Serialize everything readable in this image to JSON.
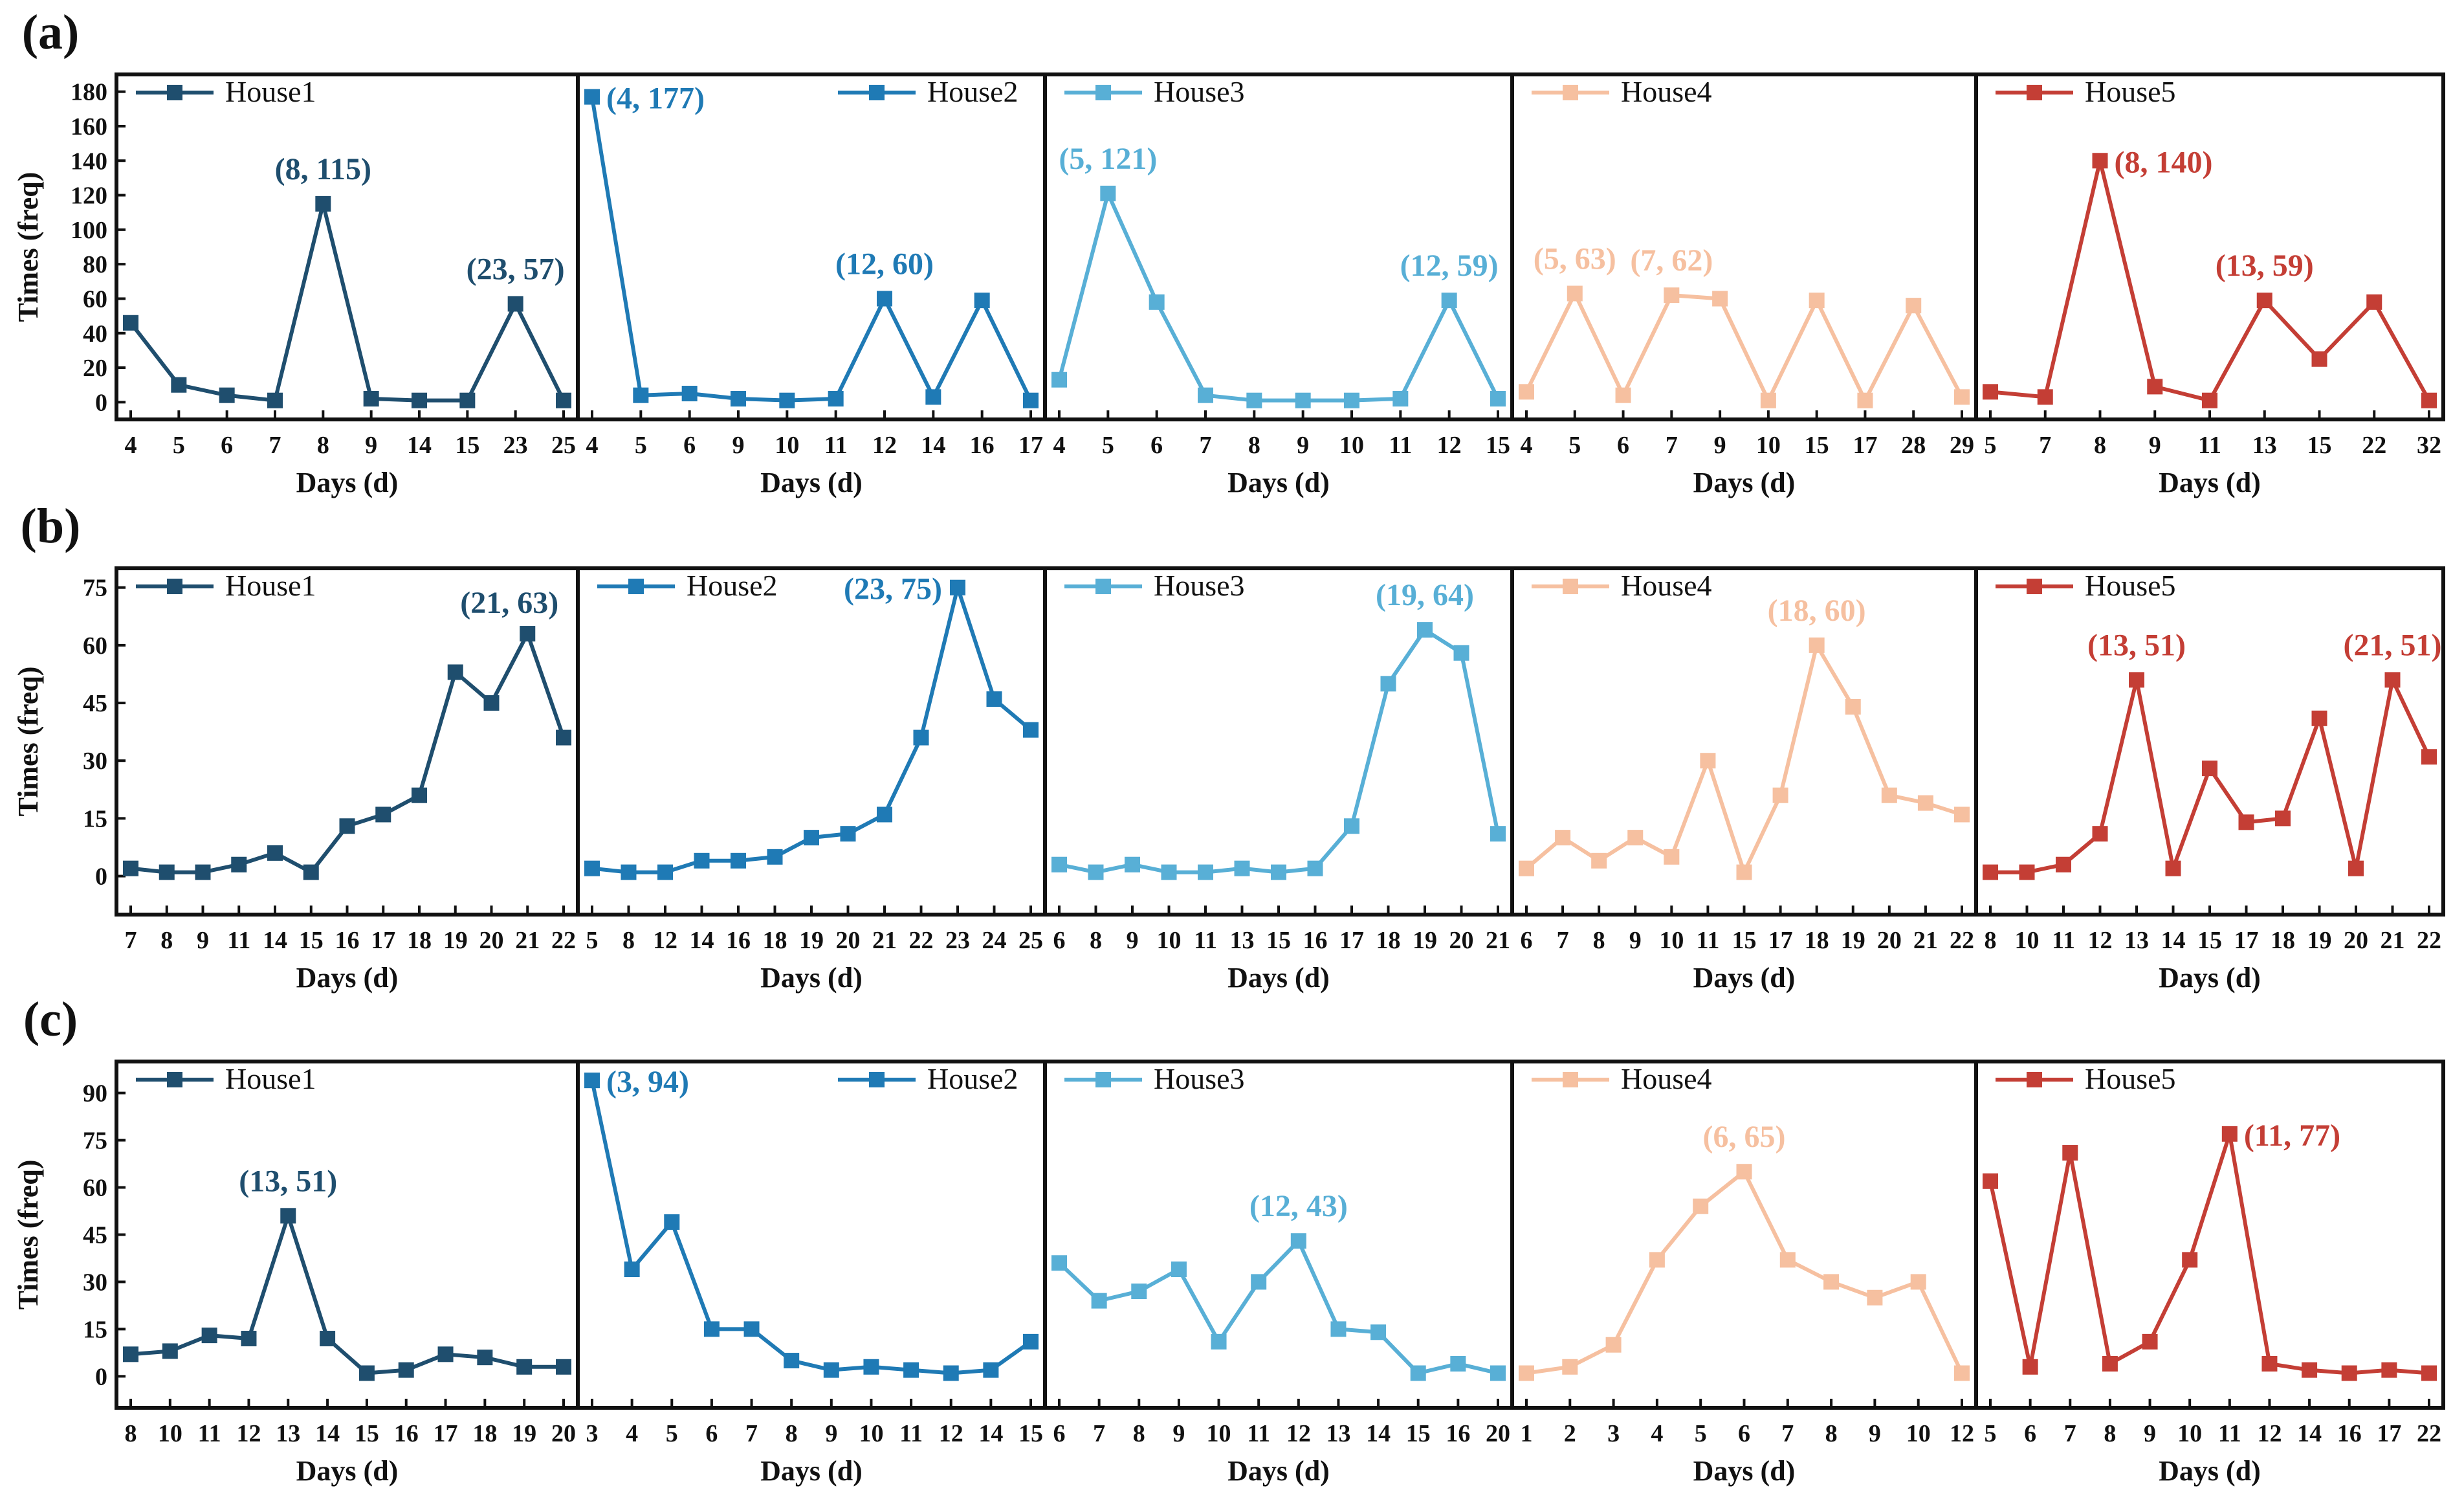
{
  "figure": {
    "x_axis_label": "Days (d)",
    "y_axis_label": "Times (freq)"
  },
  "chart_data": [
    {
      "id": "a",
      "label": "(a)",
      "type": "line",
      "ylim": [
        -10,
        190
      ],
      "yticks": [
        0,
        20,
        40,
        60,
        80,
        100,
        120,
        140,
        160,
        180
      ],
      "panels": [
        {
          "series": "House1",
          "color": "#1f4e6e",
          "legend": "left",
          "categories": [
            "4",
            "5",
            "6",
            "7",
            "8",
            "9",
            "14",
            "15",
            "23",
            "25"
          ],
          "values": [
            46,
            10,
            4,
            1,
            115,
            2,
            1,
            1,
            57,
            1
          ],
          "annotations": [
            {
              "index": 4,
              "text": "(8, 115)",
              "pos": "above"
            },
            {
              "index": 8,
              "text": "(23, 57)",
              "pos": "above"
            }
          ]
        },
        {
          "series": "House2",
          "color": "#1f7ab5",
          "legend": "right",
          "categories": [
            "4",
            "5",
            "6",
            "9",
            "10",
            "11",
            "12",
            "14",
            "16",
            "17"
          ],
          "values": [
            177,
            4,
            5,
            2,
            1,
            2,
            60,
            3,
            59,
            1
          ],
          "annotations": [
            {
              "index": 0,
              "text": "(4, 177)",
              "pos": "right"
            },
            {
              "index": 6,
              "text": "(12, 60)",
              "pos": "above"
            }
          ]
        },
        {
          "series": "House3",
          "color": "#58afd6",
          "legend": "left",
          "categories": [
            "4",
            "5",
            "6",
            "7",
            "8",
            "9",
            "10",
            "11",
            "12",
            "15"
          ],
          "values": [
            13,
            121,
            58,
            4,
            1,
            1,
            1,
            2,
            59,
            2
          ],
          "annotations": [
            {
              "index": 1,
              "text": "(5, 121)",
              "pos": "above"
            },
            {
              "index": 8,
              "text": "(12, 59)",
              "pos": "above"
            }
          ]
        },
        {
          "series": "House4",
          "color": "#f6c0a0",
          "legend": "left",
          "categories": [
            "4",
            "5",
            "6",
            "7",
            "9",
            "10",
            "15",
            "17",
            "28",
            "29"
          ],
          "values": [
            6,
            63,
            4,
            62,
            60,
            1,
            59,
            1,
            56,
            3
          ],
          "annotations": [
            {
              "index": 1,
              "text": "(5, 63)",
              "pos": "above"
            },
            {
              "index": 3,
              "text": "(7, 62)",
              "pos": "above"
            }
          ]
        },
        {
          "series": "House5",
          "color": "#c43e35",
          "legend": "left",
          "categories": [
            "5",
            "7",
            "8",
            "9",
            "11",
            "13",
            "15",
            "22",
            "32"
          ],
          "values": [
            6,
            3,
            140,
            9,
            1,
            59,
            25,
            58,
            1
          ],
          "annotations": [
            {
              "index": 2,
              "text": "(8, 140)",
              "pos": "right"
            },
            {
              "index": 5,
              "text": "(13, 59)",
              "pos": "above"
            }
          ]
        }
      ]
    },
    {
      "id": "b",
      "label": "(b)",
      "type": "line",
      "ylim": [
        -10,
        80
      ],
      "yticks": [
        0,
        15,
        30,
        45,
        60,
        75
      ],
      "panels": [
        {
          "series": "House1",
          "color": "#1f4e6e",
          "legend": "left",
          "categories": [
            "7",
            "8",
            "9",
            "11",
            "14",
            "15",
            "16",
            "17",
            "18",
            "19",
            "20",
            "21",
            "22"
          ],
          "values": [
            2,
            1,
            1,
            3,
            6,
            1,
            13,
            16,
            21,
            53,
            45,
            63,
            36
          ],
          "annotations": [
            {
              "index": 11,
              "text": "(21, 63)",
              "pos": "above-left"
            }
          ]
        },
        {
          "series": "House2",
          "color": "#1f7ab5",
          "legend": "left",
          "categories": [
            "5",
            "8",
            "12",
            "14",
            "16",
            "18",
            "19",
            "20",
            "21",
            "22",
            "23",
            "24",
            "25"
          ],
          "values": [
            2,
            1,
            1,
            4,
            4,
            5,
            10,
            11,
            16,
            36,
            75,
            46,
            38
          ],
          "annotations": [
            {
              "index": 10,
              "text": "(23, 75)",
              "pos": "left"
            }
          ]
        },
        {
          "series": "House3",
          "color": "#58afd6",
          "legend": "left",
          "categories": [
            "6",
            "8",
            "9",
            "10",
            "11",
            "13",
            "15",
            "16",
            "17",
            "18",
            "19",
            "20",
            "21"
          ],
          "values": [
            3,
            1,
            3,
            1,
            1,
            2,
            1,
            2,
            13,
            50,
            64,
            58,
            11
          ],
          "annotations": [
            {
              "index": 10,
              "text": "(19, 64)",
              "pos": "above"
            }
          ]
        },
        {
          "series": "House4",
          "color": "#f6c0a0",
          "legend": "left",
          "categories": [
            "6",
            "7",
            "8",
            "9",
            "10",
            "11",
            "15",
            "17",
            "18",
            "19",
            "20",
            "21",
            "22"
          ],
          "values": [
            2,
            10,
            4,
            10,
            5,
            30,
            1,
            21,
            60,
            44,
            21,
            19,
            16
          ],
          "annotations": [
            {
              "index": 8,
              "text": "(18, 60)",
              "pos": "above"
            }
          ]
        },
        {
          "series": "House5",
          "color": "#c43e35",
          "legend": "left",
          "categories": [
            "8",
            "10",
            "11",
            "12",
            "13",
            "14",
            "15",
            "17",
            "18",
            "19",
            "20",
            "21",
            "22"
          ],
          "values": [
            1,
            1,
            3,
            11,
            51,
            2,
            28,
            14,
            15,
            41,
            2,
            51,
            31
          ],
          "annotations": [
            {
              "index": 4,
              "text": "(13, 51)",
              "pos": "above"
            },
            {
              "index": 11,
              "text": "(21, 51)",
              "pos": "above"
            }
          ]
        }
      ]
    },
    {
      "id": "c",
      "label": "(c)",
      "type": "line",
      "ylim": [
        -10,
        100
      ],
      "yticks": [
        0,
        15,
        30,
        45,
        60,
        75,
        90
      ],
      "panels": [
        {
          "series": "House1",
          "color": "#1f4e6e",
          "legend": "left",
          "categories": [
            "8",
            "10",
            "11",
            "12",
            "13",
            "14",
            "15",
            "16",
            "17",
            "18",
            "19",
            "20"
          ],
          "values": [
            7,
            8,
            13,
            12,
            51,
            12,
            1,
            2,
            7,
            6,
            3,
            3
          ],
          "annotations": [
            {
              "index": 4,
              "text": "(13, 51)",
              "pos": "above"
            }
          ]
        },
        {
          "series": "House2",
          "color": "#1f7ab5",
          "legend": "right",
          "categories": [
            "3",
            "4",
            "5",
            "6",
            "7",
            "8",
            "9",
            "10",
            "11",
            "12",
            "14",
            "15"
          ],
          "values": [
            94,
            34,
            49,
            15,
            15,
            5,
            2,
            3,
            2,
            1,
            2,
            11
          ],
          "annotations": [
            {
              "index": 0,
              "text": "(3, 94)",
              "pos": "right"
            }
          ]
        },
        {
          "series": "House3",
          "color": "#58afd6",
          "legend": "left",
          "categories": [
            "6",
            "7",
            "8",
            "9",
            "10",
            "11",
            "12",
            "13",
            "14",
            "15",
            "16",
            "20"
          ],
          "values": [
            36,
            24,
            27,
            34,
            11,
            30,
            43,
            15,
            14,
            1,
            4,
            1
          ],
          "annotations": [
            {
              "index": 6,
              "text": "(12, 43)",
              "pos": "above"
            }
          ]
        },
        {
          "series": "House4",
          "color": "#f6c0a0",
          "legend": "left",
          "categories": [
            "1",
            "2",
            "3",
            "4",
            "5",
            "6",
            "7",
            "8",
            "9",
            "10",
            "12"
          ],
          "values": [
            1,
            3,
            10,
            37,
            54,
            65,
            37,
            30,
            25,
            30,
            1
          ],
          "annotations": [
            {
              "index": 5,
              "text": "(6, 65)",
              "pos": "above"
            }
          ]
        },
        {
          "series": "House5",
          "color": "#c43e35",
          "legend": "left",
          "categories": [
            "5",
            "6",
            "7",
            "8",
            "9",
            "10",
            "11",
            "12",
            "14",
            "16",
            "17",
            "22"
          ],
          "values": [
            62,
            3,
            71,
            4,
            11,
            37,
            77,
            4,
            2,
            1,
            2,
            1
          ],
          "annotations": [
            {
              "index": 6,
              "text": "(11, 77)",
              "pos": "right"
            }
          ]
        }
      ]
    }
  ]
}
